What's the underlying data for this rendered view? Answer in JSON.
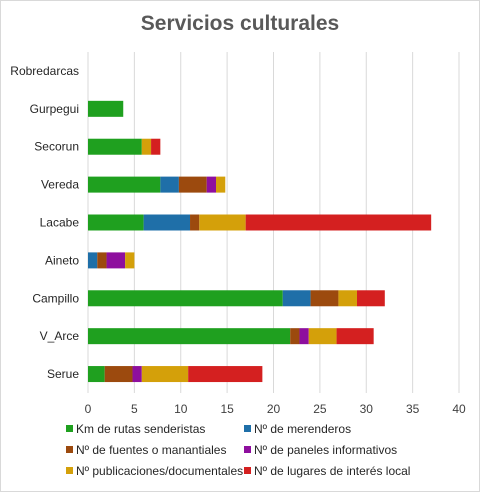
{
  "chart_data": {
    "type": "bar",
    "orientation": "horizontal",
    "stacked": true,
    "title": "Servicios culturales",
    "categories": [
      "Robredarcas",
      "Gurpegui",
      "Secorun",
      "Vereda",
      "Lacabe",
      "Aineto",
      "Campillo",
      "V_Arce",
      "Serue"
    ],
    "xlim": [
      0,
      40
    ],
    "xticks": [
      0,
      5,
      10,
      15,
      20,
      25,
      30,
      35,
      40
    ],
    "grid": true,
    "legend_position": "bottom",
    "series": [
      {
        "name": "Km de rutas senderistas",
        "color": "#1fa01f",
        "values": [
          0,
          3.8,
          5.8,
          7.8,
          6,
          0,
          21,
          21.8,
          1.8
        ]
      },
      {
        "name": "Nº de merenderos",
        "color": "#1f6fa8",
        "values": [
          0,
          0,
          0,
          2,
          5,
          1,
          3,
          0,
          0
        ]
      },
      {
        "name": "Nº de fuentes o manantiales",
        "color": "#9c4a0e",
        "values": [
          0,
          0,
          0,
          3,
          1,
          1,
          3,
          1,
          3
        ]
      },
      {
        "name": "Nº de paneles informativos",
        "color": "#8e0f9e",
        "values": [
          0,
          0,
          0,
          1,
          0,
          2,
          0,
          1,
          1
        ]
      },
      {
        "name": "Nº publicaciones/documentales",
        "color": "#d4a00a",
        "values": [
          0,
          0,
          1,
          1,
          5,
          1,
          2,
          3,
          5
        ]
      },
      {
        "name": "Nº de lugares de interés local",
        "color": "#d42020",
        "values": [
          0,
          0,
          1,
          0,
          20,
          0,
          3,
          4,
          8
        ]
      }
    ]
  }
}
